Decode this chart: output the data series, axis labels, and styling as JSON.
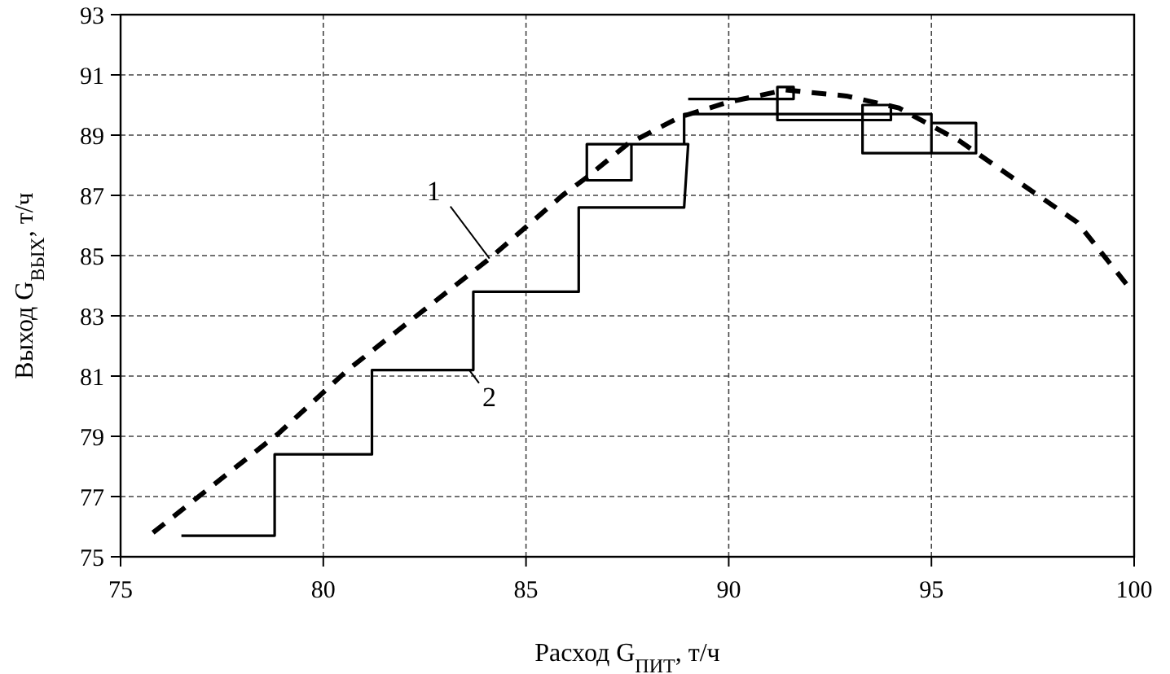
{
  "chart_data": {
    "type": "line",
    "xlabel": "Расход G$_{ПИТ}$, т/ч",
    "ylabel": "Выход G$_{ВЫХ}$, т/ч",
    "xlim": [
      75,
      100
    ],
    "ylim": [
      75,
      93
    ],
    "xticks": [
      75,
      80,
      85,
      90,
      95,
      100
    ],
    "yticks": [
      75,
      77,
      79,
      81,
      83,
      85,
      87,
      89,
      91,
      93
    ],
    "grid": true,
    "marker": "none",
    "series": [
      {
        "color": "#000000",
        "line_style": "dashed",
        "x": [
          75.8,
          78.9,
          80.6,
          82.3,
          84.1,
          85.9,
          86.5,
          87.5,
          88.8,
          90.0,
          91.4,
          92.9,
          94.2,
          95.7,
          97.2,
          98.6,
          99.9
        ],
        "values": [
          75.8,
          79.1,
          81.2,
          83.0,
          84.9,
          87.0,
          87.6,
          88.7,
          89.6,
          90.1,
          90.5,
          90.3,
          89.9,
          88.8,
          87.4,
          86.1,
          83.9
        ]
      },
      {
        "color": "#000000",
        "line_style": "solid",
        "x": [
          76.5,
          78.8,
          78.8,
          81.2,
          81.2,
          83.7,
          83.7,
          86.3,
          86.3,
          88.9,
          89.0,
          86.5,
          86.5,
          87.6,
          87.6,
          88.9,
          88.9,
          90.4,
          95.0,
          95.0,
          96.1,
          96.1,
          95.0,
          95.0,
          93.3,
          93.3,
          94.0,
          94.0,
          91.2,
          91.2,
          91.6,
          91.6,
          89.0
        ],
        "values": [
          75.7,
          75.7,
          78.4,
          78.4,
          81.2,
          81.2,
          83.8,
          83.8,
          86.6,
          86.6,
          88.7,
          88.7,
          87.5,
          87.5,
          88.7,
          88.7,
          89.7,
          89.7,
          89.7,
          88.4,
          88.4,
          89.4,
          89.4,
          88.4,
          88.4,
          90.0,
          90.0,
          89.5,
          89.5,
          90.6,
          90.6,
          90.2,
          90.2
        ]
      }
    ],
    "annotations": [
      {
        "text": "1",
        "x": 84.1,
        "y": 84.9
      },
      {
        "text": "2",
        "x": 83.6,
        "y": 81.2
      }
    ]
  }
}
